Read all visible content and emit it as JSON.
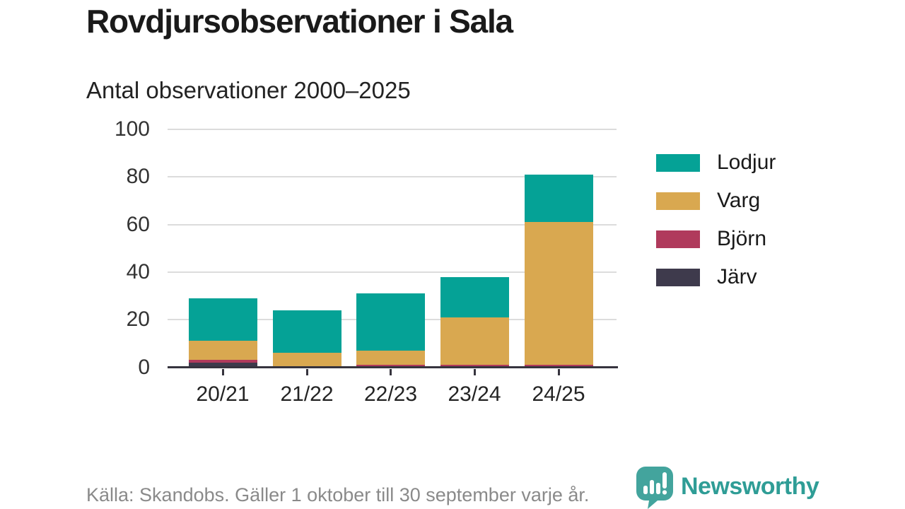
{
  "header": {
    "title": "Rovdjursobservationer i Sala",
    "subtitle": "Antal observationer 2000–2025"
  },
  "chart_data": {
    "type": "bar",
    "stacked": true,
    "title": "Rovdjursobservationer i Sala",
    "subtitle": "Antal observationer 2000–2025",
    "xlabel": "",
    "ylabel": "",
    "categories": [
      "20/21",
      "21/22",
      "22/23",
      "23/24",
      "24/25"
    ],
    "series": [
      {
        "name": "Lodjur",
        "color": "#05a296",
        "values": [
          18,
          18,
          24,
          17,
          20
        ]
      },
      {
        "name": "Varg",
        "color": "#d9a850",
        "values": [
          8,
          6,
          6,
          20,
          60
        ]
      },
      {
        "name": "Björn",
        "color": "#b03a5c",
        "values": [
          1,
          0,
          1,
          1,
          1
        ]
      },
      {
        "name": "Järv",
        "color": "#3e3a4c",
        "values": [
          2,
          0,
          0,
          0,
          0
        ]
      }
    ],
    "stack_order_bottom_up": [
      "Järv",
      "Björn",
      "Varg",
      "Lodjur"
    ],
    "totals": [
      29,
      24,
      31,
      38,
      81
    ],
    "y_ticks": [
      0,
      20,
      40,
      60,
      80,
      100
    ],
    "ylim": [
      0,
      100
    ],
    "grid": "horizontal-only",
    "legend_position": "right"
  },
  "footer": {
    "source": "Källa: Skandobs. Gäller 1 oktober till 30 september varje år.",
    "brand": "Newsworthy"
  },
  "colors": {
    "axis": "#36343e",
    "gridline": "#dcdcdc",
    "title_text": "#1a1a1a",
    "tick_text": "#333333",
    "source_text": "#8a8a8a",
    "logo_icon": "#43a49d",
    "logo_text": "#2f9d96"
  }
}
